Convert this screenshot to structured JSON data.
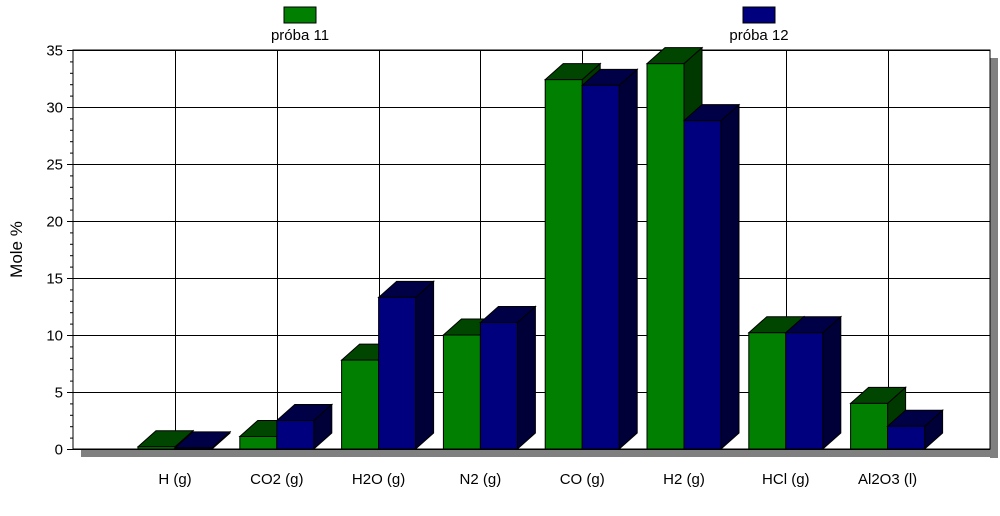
{
  "chart_data": {
    "type": "bar",
    "title": "",
    "xlabel": "",
    "ylabel": "Mole %",
    "ylim": [
      0,
      35
    ],
    "yticks": [
      0,
      5,
      10,
      15,
      20,
      25,
      30,
      35
    ],
    "grid": true,
    "legend_position": "top",
    "categories": [
      "H (g)",
      "CO2 (g)",
      "H2O (g)",
      "N2 (g)",
      "CO (g)",
      "H2 (g)",
      "HCl (g)",
      "Al2O3 (l)"
    ],
    "series": [
      {
        "name": "próba 11",
        "color": "#007f00",
        "values": [
          0.2,
          1.1,
          7.8,
          10.0,
          32.4,
          33.8,
          10.2,
          4.0
        ]
      },
      {
        "name": "próba 12",
        "color": "#00007f",
        "values": [
          0.1,
          2.5,
          13.3,
          11.1,
          31.9,
          28.8,
          10.2,
          2.0
        ]
      }
    ]
  }
}
